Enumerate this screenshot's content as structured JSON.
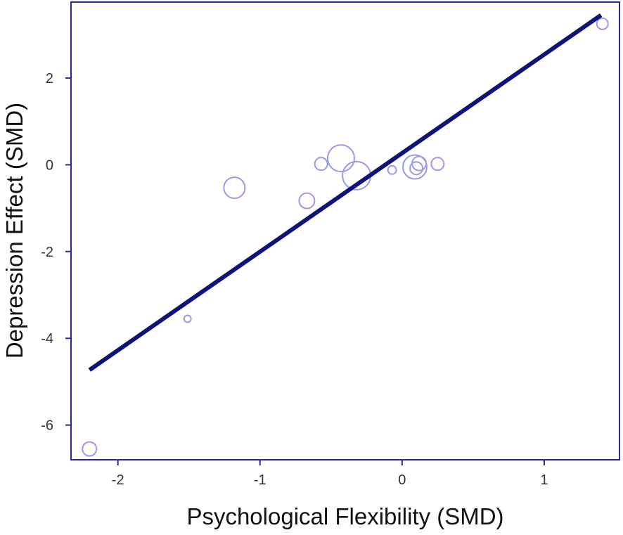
{
  "chart_data": {
    "type": "scatter",
    "title": "",
    "xlabel": "Psychological Flexibility (SMD)",
    "ylabel": "Depression Effect (SMD)",
    "xlim": [
      -2.33,
      1.53
    ],
    "ylim": [
      -6.8,
      3.75
    ],
    "x_ticks": [
      {
        "value": -2,
        "label": "-2"
      },
      {
        "value": -1,
        "label": "-1"
      },
      {
        "value": 0,
        "label": "0"
      },
      {
        "value": 1,
        "label": "1"
      }
    ],
    "y_ticks": [
      {
        "value": -6,
        "label": "-6"
      },
      {
        "value": -4,
        "label": "-4"
      },
      {
        "value": -2,
        "label": "-2"
      },
      {
        "value": 0,
        "label": "0"
      },
      {
        "value": 2,
        "label": "2"
      }
    ],
    "grid": false,
    "legend": "none",
    "colors": {
      "axis": "#2a2a9c",
      "points": "#9a9ae6",
      "line": "#0d1378"
    },
    "points": [
      {
        "x": -2.2,
        "y": -6.55,
        "weight": 10
      },
      {
        "x": -1.51,
        "y": -3.55,
        "weight": 5
      },
      {
        "x": -1.18,
        "y": -0.53,
        "weight": 15
      },
      {
        "x": -0.67,
        "y": -0.83,
        "weight": 11
      },
      {
        "x": -0.57,
        "y": 0.02,
        "weight": 9
      },
      {
        "x": -0.43,
        "y": 0.15,
        "weight": 19
      },
      {
        "x": -0.32,
        "y": -0.25,
        "weight": 20
      },
      {
        "x": -0.07,
        "y": -0.12,
        "weight": 6
      },
      {
        "x": 0.09,
        "y": -0.05,
        "weight": 17
      },
      {
        "x": 0.12,
        "y": 0.03,
        "weight": 10
      },
      {
        "x": 0.1,
        "y": -0.08,
        "weight": 9
      },
      {
        "x": 0.25,
        "y": 0.02,
        "weight": 9
      },
      {
        "x": 1.41,
        "y": 3.25,
        "weight": 8
      }
    ],
    "regression_line": {
      "x": [
        -2.2,
        1.4
      ],
      "y": [
        -4.73,
        3.45
      ]
    }
  }
}
